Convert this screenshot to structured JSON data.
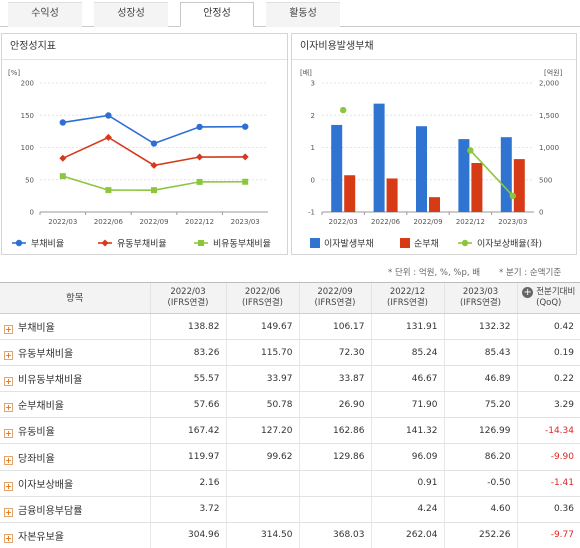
{
  "tabs": [
    {
      "label": "수익성",
      "active": false
    },
    {
      "label": "성장성",
      "active": false
    },
    {
      "label": "안정성",
      "active": true
    },
    {
      "label": "활동성",
      "active": false
    }
  ],
  "left_panel": {
    "title": "안정성지표"
  },
  "right_panel": {
    "title": "이자비용발생부채"
  },
  "chart_data": [
    {
      "type": "line",
      "title": "",
      "ylabel": "[%]",
      "categories": [
        "2022/03",
        "2022/06",
        "2022/09",
        "2022/12",
        "2023/03"
      ],
      "ylim": [
        0,
        200
      ],
      "yticks": [
        "0",
        "50",
        "100",
        "150",
        "200"
      ],
      "grid": true,
      "legend": "bottom",
      "series": [
        {
          "name": "부채비율",
          "color": "#2d6fd6",
          "marker": "circle",
          "values": [
            138.82,
            149.67,
            106.17,
            131.91,
            132.32
          ]
        },
        {
          "name": "유동부채비율",
          "color": "#d6391c",
          "marker": "diamond",
          "values": [
            83.26,
            115.7,
            72.3,
            85.24,
            85.43
          ]
        },
        {
          "name": "비유동부채비율",
          "color": "#8cc63f",
          "marker": "square",
          "values": [
            55.57,
            33.97,
            33.87,
            46.67,
            46.89
          ]
        }
      ]
    },
    {
      "type": "bar",
      "title": "",
      "ylabel": "[배]",
      "y2label": "[억원]",
      "categories": [
        "2022/03",
        "2022/06",
        "2022/09",
        "2022/12",
        "2023/03"
      ],
      "ylim": [
        -1,
        3
      ],
      "yticks": [
        "-1",
        "0",
        "1",
        "2",
        "3"
      ],
      "y2lim": [
        0,
        2000
      ],
      "y2ticks": [
        "0",
        "500",
        "1,000",
        "1,500",
        "2,000"
      ],
      "grid": true,
      "legend": "bottom",
      "series": [
        {
          "name": "이자발생부채",
          "axis": "right",
          "type": "bar",
          "color": "#2f74d0",
          "values": [
            1350,
            1680,
            1330,
            1130,
            1160
          ]
        },
        {
          "name": "순부채",
          "axis": "right",
          "type": "bar",
          "color": "#d63b16",
          "values": [
            570,
            520,
            230,
            760,
            820
          ]
        },
        {
          "name": "이자보상배율(좌)",
          "axis": "left",
          "type": "line",
          "color": "#8cc63f",
          "values": [
            2.16,
            null,
            null,
            0.91,
            -0.5
          ]
        }
      ]
    }
  ],
  "notes": {
    "unit": "* 단위 : 억원, %, %p, 배",
    "basis": "* 분기 : 순액기준"
  },
  "table": {
    "header_item": "항목",
    "columns": [
      {
        "period": "2022/03",
        "basis": "(IFRS연결)"
      },
      {
        "period": "2022/06",
        "basis": "(IFRS연결)"
      },
      {
        "period": "2022/09",
        "basis": "(IFRS연결)"
      },
      {
        "period": "2022/12",
        "basis": "(IFRS연결)"
      },
      {
        "period": "2023/03",
        "basis": "(IFRS연결)"
      },
      {
        "period": "전분기대비",
        "basis": "(QoQ)"
      }
    ],
    "rows": [
      {
        "label": "부채비율",
        "values": [
          "138.82",
          "149.67",
          "106.17",
          "131.91",
          "132.32",
          "0.42"
        ]
      },
      {
        "label": "유동부채비율",
        "values": [
          "83.26",
          "115.70",
          "72.30",
          "85.24",
          "85.43",
          "0.19"
        ]
      },
      {
        "label": "비유동부채비율",
        "values": [
          "55.57",
          "33.97",
          "33.87",
          "46.67",
          "46.89",
          "0.22"
        ]
      },
      {
        "label": "순부채비율",
        "values": [
          "57.66",
          "50.78",
          "26.90",
          "71.90",
          "75.20",
          "3.29"
        ]
      },
      {
        "label": "유동비율",
        "values": [
          "167.42",
          "127.20",
          "162.86",
          "141.32",
          "126.99",
          "-14.34"
        ]
      },
      {
        "label": "당좌비율",
        "values": [
          "119.97",
          "99.62",
          "129.86",
          "96.09",
          "86.20",
          "-9.90"
        ]
      },
      {
        "label": "이자보상배율",
        "values": [
          "2.16",
          "",
          "",
          "0.91",
          "-0.50",
          "-1.41"
        ]
      },
      {
        "label": "금융비용부담률",
        "values": [
          "3.72",
          "",
          "",
          "4.24",
          "4.60",
          "0.36"
        ]
      },
      {
        "label": "자본유보율",
        "values": [
          "304.96",
          "314.50",
          "368.03",
          "262.04",
          "252.26",
          "-9.77"
        ]
      }
    ]
  }
}
